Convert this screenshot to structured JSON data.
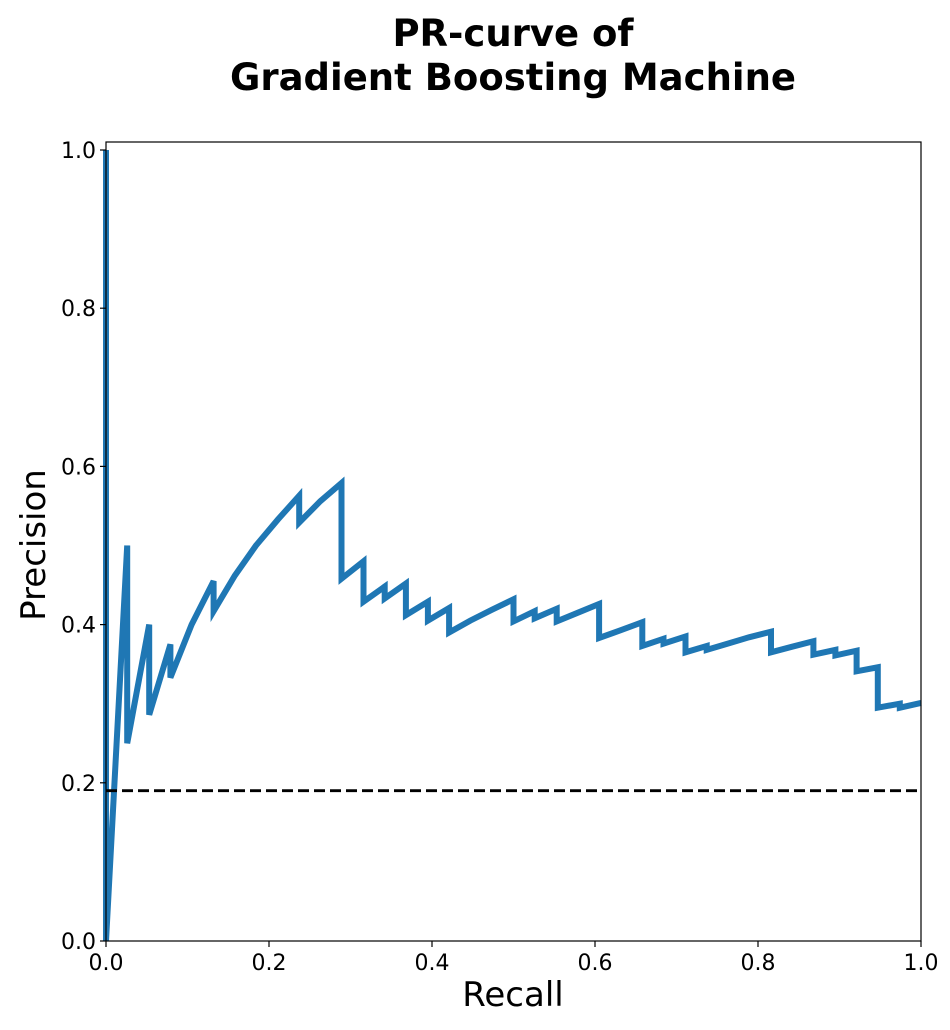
{
  "chart_data": {
    "type": "line",
    "title": [
      "PR-curve of",
      "Gradient Boosting Machine"
    ],
    "xlabel": "Recall",
    "ylabel": "Precision",
    "xlim": [
      0.0,
      1.0
    ],
    "ylim": [
      0.0,
      1.0
    ],
    "xticks": [
      "0.0",
      "0.2",
      "0.4",
      "0.6",
      "0.8",
      "1.0"
    ],
    "yticks": [
      "0.0",
      "0.2",
      "0.4",
      "0.6",
      "0.8",
      "1.0"
    ],
    "grid": false,
    "series": [
      {
        "style": "solid",
        "color": "#1f77b4",
        "x": [
          0.0,
          0.0,
          0.0,
          0.026,
          0.026,
          0.053,
          0.053,
          0.079,
          0.079,
          0.105,
          0.132,
          0.132,
          0.158,
          0.184,
          0.211,
          0.237,
          0.237,
          0.263,
          0.289,
          0.289,
          0.316,
          0.316,
          0.342,
          0.342,
          0.368,
          0.368,
          0.395,
          0.395,
          0.421,
          0.421,
          0.447,
          0.474,
          0.5,
          0.5,
          0.526,
          0.526,
          0.553,
          0.553,
          0.579,
          0.605,
          0.605,
          0.632,
          0.658,
          0.658,
          0.684,
          0.684,
          0.711,
          0.711,
          0.737,
          0.737,
          0.763,
          0.789,
          0.816,
          0.816,
          0.842,
          0.868,
          0.868,
          0.895,
          0.895,
          0.921,
          0.921,
          0.947,
          0.947,
          0.974,
          0.974,
          1.0
        ],
        "y": [
          1.0,
          0.0,
          0.0,
          0.5,
          0.25,
          0.4,
          0.286,
          0.375,
          0.333,
          0.4,
          0.455,
          0.417,
          0.462,
          0.5,
          0.533,
          0.563,
          0.529,
          0.556,
          0.579,
          0.458,
          0.48,
          0.429,
          0.448,
          0.433,
          0.452,
          0.412,
          0.429,
          0.405,
          0.421,
          0.39,
          0.405,
          0.419,
          0.432,
          0.404,
          0.417,
          0.408,
          0.42,
          0.404,
          0.415,
          0.426,
          0.383,
          0.393,
          0.403,
          0.373,
          0.382,
          0.376,
          0.385,
          0.365,
          0.373,
          0.368,
          0.376,
          0.384,
          0.391,
          0.365,
          0.372,
          0.379,
          0.362,
          0.368,
          0.361,
          0.367,
          0.341,
          0.346,
          0.295,
          0.3,
          0.295,
          0.301
        ]
      },
      {
        "style": "dashed",
        "color": "#000000",
        "x": [
          0.0,
          1.0
        ],
        "y": [
          0.19,
          0.19
        ]
      }
    ]
  }
}
